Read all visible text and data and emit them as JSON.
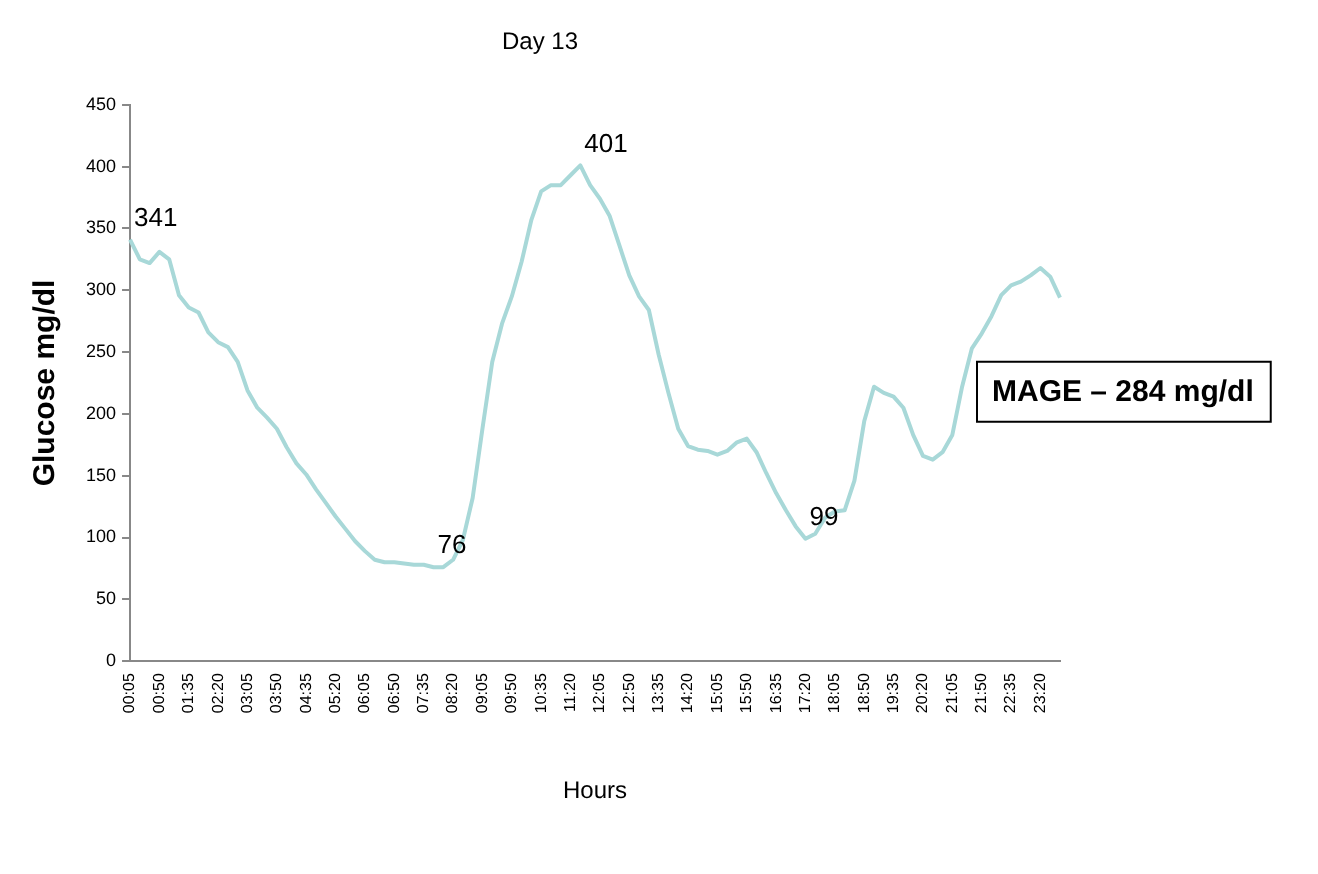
{
  "chart_data": {
    "type": "line",
    "title": "Day 13",
    "xlabel": "Hours",
    "ylabel": "Glucose mg/dl",
    "annotations": [
      "MAGE – 284 mg/dl"
    ],
    "categories": [
      "00:05",
      null,
      null,
      "00:50",
      null,
      null,
      "01:35",
      null,
      null,
      "02:20",
      null,
      null,
      "03:05",
      null,
      null,
      "03:50",
      null,
      null,
      "04:35",
      null,
      null,
      "05:20",
      null,
      null,
      "06:05",
      null,
      null,
      "06:50",
      null,
      null,
      "07:35",
      null,
      null,
      "08:20",
      null,
      null,
      "09:05",
      null,
      null,
      "09:50",
      null,
      null,
      "10:35",
      null,
      null,
      "11:20",
      null,
      null,
      "12:05",
      null,
      null,
      "12:50",
      null,
      null,
      "13:35",
      null,
      null,
      "14:20",
      null,
      null,
      "15:05",
      null,
      null,
      "15:50",
      null,
      null,
      "16:35",
      null,
      null,
      "17:20",
      null,
      null,
      "18:05",
      null,
      null,
      "18:50",
      null,
      null,
      "19:35",
      null,
      null,
      "20:20",
      null,
      null,
      "21:05",
      null,
      null,
      "21:50",
      null,
      null,
      "22:35",
      null,
      null,
      "23:20",
      null,
      null
    ],
    "series": [
      {
        "color": "#a8d8d8",
        "values": [
          341,
          325,
          322,
          331,
          325,
          296,
          286,
          282,
          266,
          258,
          254,
          242,
          219,
          205,
          197,
          188,
          173,
          160,
          151,
          139,
          128,
          117,
          107,
          97,
          89,
          82,
          80,
          80,
          79,
          78,
          78,
          76,
          76,
          82,
          98,
          132,
          188,
          242,
          273,
          295,
          323,
          357,
          380,
          385,
          385,
          393,
          401,
          385,
          374,
          360,
          336,
          312,
          295,
          284,
          248,
          217,
          188,
          174,
          171,
          170,
          167,
          170,
          177,
          180,
          169,
          152,
          136,
          122,
          109,
          99,
          103,
          116,
          121,
          122,
          146,
          194,
          222,
          217,
          214,
          205,
          183,
          166,
          163,
          169,
          183,
          222,
          253,
          265,
          279,
          296,
          304,
          307,
          312,
          318,
          311,
          294
        ],
        "value_labels": [
          "341",
          null,
          null,
          null,
          null,
          null,
          null,
          null,
          null,
          null,
          null,
          null,
          null,
          null,
          null,
          null,
          null,
          null,
          null,
          null,
          null,
          null,
          null,
          null,
          null,
          null,
          null,
          null,
          null,
          null,
          null,
          "76",
          null,
          null,
          null,
          null,
          null,
          null,
          null,
          null,
          null,
          null,
          null,
          null,
          null,
          null,
          "401",
          null,
          null,
          null,
          null,
          null,
          null,
          null,
          null,
          null,
          null,
          null,
          null,
          null,
          null,
          null,
          null,
          null,
          null,
          null,
          null,
          null,
          null,
          "99",
          null,
          null,
          null,
          null,
          null,
          null,
          null,
          null,
          null,
          null,
          null,
          null,
          null,
          null,
          null,
          null,
          null,
          null,
          null,
          null,
          null,
          null,
          null,
          null,
          null,
          null
        ]
      }
    ],
    "ylim": [
      0,
      450
    ],
    "yticks": [
      0,
      50,
      100,
      150,
      200,
      250,
      300,
      350,
      400,
      450
    ]
  }
}
